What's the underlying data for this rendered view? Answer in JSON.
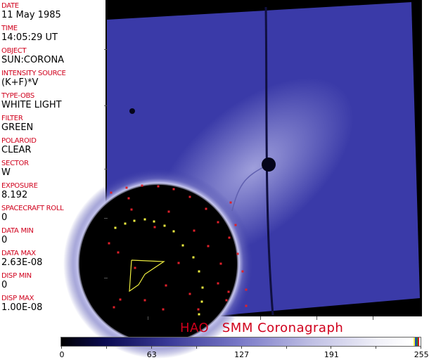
{
  "fields": [
    {
      "label": "DATE",
      "value": "11 May 1985"
    },
    {
      "label": "TIME",
      "value": "14:05:29 UT"
    },
    {
      "label": "OBJECT",
      "value": "SUN:CORONA"
    },
    {
      "label": "INTENSITY SOURCE",
      "value": "(K+F)*V"
    },
    {
      "label": "TYPE-OBS",
      "value": "WHITE LIGHT"
    },
    {
      "label": "FILTER",
      "value": "GREEN"
    },
    {
      "label": "POLAROID",
      "value": "CLEAR"
    },
    {
      "label": "SECTOR",
      "value": "W"
    },
    {
      "label": "EXPOSURE",
      "value": "8.192"
    },
    {
      "label": "SPACECRAFT ROLL",
      "value": "0"
    },
    {
      "label": "DATA MIN",
      "value": "0"
    },
    {
      "label": "DATA MAX",
      "value": "2.63E-08"
    },
    {
      "label": "DISP MIN",
      "value": "0"
    },
    {
      "label": "DISP MAX",
      "value": "1.00E-08"
    }
  ],
  "title": "HAO   SMM Coronagraph",
  "colorbar": {
    "ticks": [
      "0",
      "63",
      "127",
      "191",
      "255"
    ],
    "min": 0,
    "max": 255
  },
  "colors": {
    "label": "#d0001c",
    "image_blue": "#3a3aa8",
    "marker_red": "#e0202a",
    "marker_yellow": "#f0f040"
  }
}
